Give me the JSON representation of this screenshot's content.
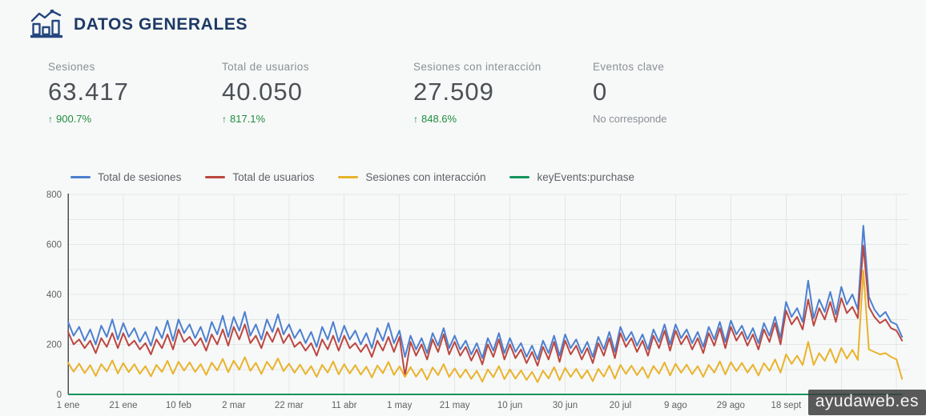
{
  "header": {
    "title": "DATOS GENERALES"
  },
  "icons": {
    "delta_up": "↑",
    "header_icon": "bar-chart-with-trend"
  },
  "kpis": [
    {
      "label": "Sesiones",
      "value": "63.417",
      "delta": "900.7%"
    },
    {
      "label": "Total de usuarios",
      "value": "40.050",
      "delta": "817.1%"
    },
    {
      "label": "Sesiones con interacción",
      "value": "27.509",
      "delta": "848.6%"
    },
    {
      "label": "Eventos clave",
      "value": "0",
      "delta": "No corresponde"
    }
  ],
  "watermark": {
    "text": "ayudaweb.es"
  },
  "colors": {
    "title_navy": "#1d3a66",
    "delta_green": "#1e8e3e",
    "label_gray": "#8a9095"
  },
  "chart_data": {
    "type": "line",
    "title": "",
    "legend_position": "top",
    "grid": true,
    "y_axis": {
      "ticks": [
        0,
        200,
        400,
        600,
        800
      ],
      "grid_step": 100,
      "max": 800,
      "min": 0
    },
    "x_axis": {
      "tick_labels": [
        "1 ene",
        "21 ene",
        "10 feb",
        "2 mar",
        "22 mar",
        "11 abr",
        "1 may",
        "21 may",
        "10 jun",
        "30 jun",
        "20 jul",
        "9 ago",
        "29 ago",
        "18 sept"
      ],
      "tick_interval_days": 20,
      "total_days": 304,
      "sample_step_days": 2
    },
    "series": [
      {
        "name": "Total de sesiones",
        "color": "#4c80d0",
        "values": [
          290,
          235,
          270,
          215,
          260,
          200,
          275,
          230,
          300,
          220,
          285,
          230,
          265,
          210,
          250,
          195,
          270,
          225,
          295,
          215,
          300,
          245,
          280,
          225,
          270,
          210,
          290,
          240,
          315,
          230,
          310,
          255,
          330,
          235,
          280,
          220,
          300,
          250,
          320,
          240,
          280,
          225,
          260,
          205,
          250,
          190,
          270,
          220,
          290,
          210,
          275,
          220,
          255,
          200,
          245,
          185,
          265,
          215,
          285,
          205,
          255,
          150,
          235,
          180,
          225,
          165,
          245,
          195,
          265,
          185,
          235,
          180,
          215,
          160,
          205,
          145,
          225,
          175,
          245,
          165,
          225,
          170,
          205,
          150,
          195,
          140,
          215,
          165,
          235,
          155,
          240,
          185,
          220,
          165,
          210,
          150,
          230,
          180,
          250,
          170,
          270,
          215,
          250,
          195,
          240,
          180,
          260,
          210,
          280,
          200,
          280,
          225,
          260,
          205,
          250,
          190,
          270,
          220,
          290,
          210,
          295,
          240,
          275,
          220,
          265,
          205,
          285,
          235,
          310,
          225,
          370,
          310,
          345,
          290,
          455,
          305,
          380,
          330,
          410,
          320,
          430,
          360,
          400,
          340,
          675,
          390,
          340,
          310,
          330,
          290,
          280,
          230
        ]
      },
      {
        "name": "Total de usuarios",
        "color": "#bc473f",
        "values": [
          250,
          200,
          220,
          185,
          215,
          165,
          225,
          190,
          245,
          185,
          245,
          195,
          215,
          180,
          205,
          160,
          220,
          185,
          240,
          180,
          260,
          210,
          230,
          195,
          225,
          175,
          240,
          200,
          260,
          195,
          270,
          220,
          280,
          205,
          235,
          185,
          250,
          210,
          265,
          205,
          240,
          190,
          210,
          175,
          205,
          155,
          220,
          180,
          235,
          175,
          235,
          185,
          205,
          170,
          200,
          150,
          215,
          175,
          230,
          170,
          230,
          75,
          210,
          155,
          200,
          140,
          220,
          170,
          240,
          160,
          210,
          155,
          190,
          135,
          180,
          120,
          200,
          150,
          220,
          140,
          200,
          145,
          180,
          125,
          170,
          115,
          190,
          140,
          210,
          130,
          215,
          160,
          195,
          140,
          185,
          125,
          205,
          155,
          225,
          145,
          245,
          190,
          225,
          170,
          215,
          155,
          235,
          185,
          255,
          175,
          255,
          200,
          235,
          180,
          225,
          165,
          245,
          195,
          265,
          185,
          270,
          215,
          250,
          195,
          240,
          180,
          260,
          210,
          285,
          200,
          335,
          280,
          310,
          260,
          380,
          275,
          345,
          300,
          370,
          290,
          385,
          325,
          350,
          305,
          595,
          350,
          310,
          285,
          300,
          265,
          255,
          215
        ]
      },
      {
        "name": "Sesiones con interacción",
        "color": "#e9b32a",
        "values": [
          127,
          91,
          123,
          85,
          117,
          74,
          121,
          92,
          136,
          84,
          125,
          89,
          121,
          83,
          113,
          72,
          118,
          90,
          134,
          82,
          131,
          95,
          128,
          90,
          121,
          78,
          127,
          96,
          142,
          89,
          135,
          99,
          149,
          94,
          126,
          82,
          131,
          100,
          144,
          93,
          123,
          87,
          119,
          81,
          113,
          70,
          118,
          87,
          132,
          80,
          121,
          84,
          117,
          79,
          111,
          68,
          116,
          85,
          130,
          78,
          112,
          70,
          109,
          71,
          103,
          59,
          108,
          77,
          121,
          70,
          104,
          68,
          100,
          62,
          94,
          51,
          100,
          69,
          113,
          61,
          100,
          63,
          96,
          58,
          90,
          49,
          95,
          64,
          109,
          57,
          106,
          70,
          102,
          64,
          96,
          53,
          102,
          71,
          115,
          63,
          118,
          82,
          115,
          77,
          109,
          66,
          114,
          83,
          128,
          76,
          123,
          87,
          119,
          81,
          113,
          70,
          118,
          87,
          132,
          80,
          129,
          93,
          126,
          87,
          119,
          76,
          125,
          94,
          140,
          87,
          160,
          122,
          155,
          117,
          210,
          118,
          165,
          134,
          182,
          126,
          186,
          143,
          178,
          138,
          495,
          180,
          170,
          160,
          165,
          150,
          140,
          62
        ]
      },
      {
        "name": "keyEvents:purchase",
        "color": "#17945c",
        "constant": 0,
        "points_count": 152
      }
    ]
  }
}
